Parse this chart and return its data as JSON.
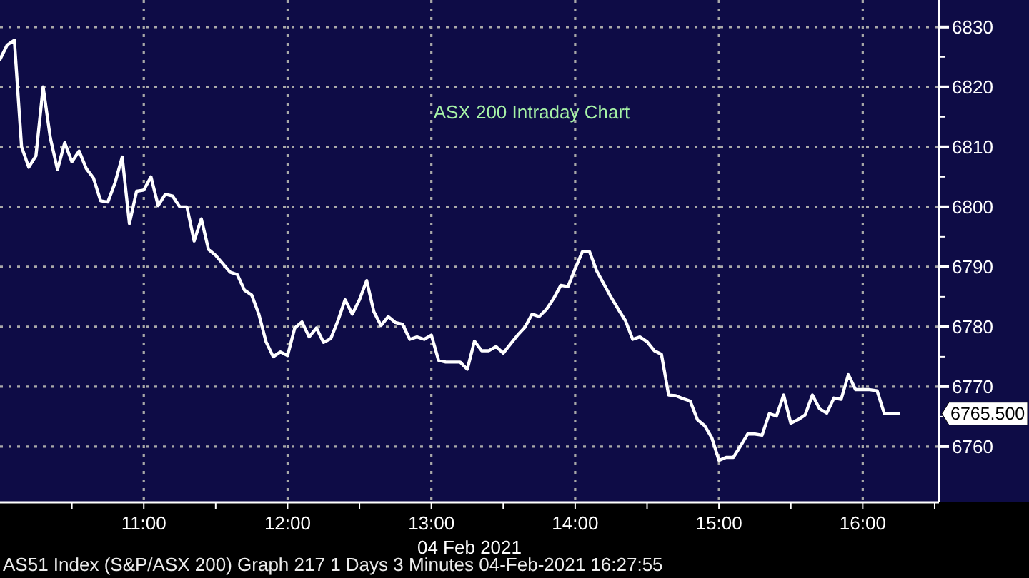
{
  "chart_data": {
    "type": "line",
    "title": "ASX 200 Intraday Chart",
    "xlabel": "04 Feb 2021",
    "annotations": [
      "AS51 Index (S&P/ASX 200) Graph 217 1 Days 3 Minutes 04-Feb-2021 16:27:55",
      "6765.500"
    ],
    "x": [
      10.0,
      10.05,
      10.1,
      10.15,
      10.2,
      10.25,
      10.3,
      10.35,
      10.4,
      10.45,
      10.5,
      10.55,
      10.6,
      10.65,
      10.7,
      10.75,
      10.8,
      10.85,
      10.9,
      10.95,
      11.0,
      11.05,
      11.1,
      11.15,
      11.2,
      11.25,
      11.3,
      11.35,
      11.4,
      11.45,
      11.5,
      11.55,
      11.6,
      11.65,
      11.7,
      11.75,
      11.8,
      11.85,
      11.9,
      11.95,
      12.0,
      12.05,
      12.1,
      12.15,
      12.2,
      12.25,
      12.3,
      12.35,
      12.4,
      12.45,
      12.5,
      12.55,
      12.6,
      12.65,
      12.7,
      12.75,
      12.8,
      12.85,
      12.9,
      12.95,
      13.0,
      13.05,
      13.1,
      13.15,
      13.2,
      13.25,
      13.3,
      13.35,
      13.4,
      13.45,
      13.5,
      13.55,
      13.6,
      13.65,
      13.7,
      13.75,
      13.8,
      13.85,
      13.9,
      13.95,
      14.0,
      14.05,
      14.1,
      14.15,
      14.2,
      14.25,
      14.3,
      14.35,
      14.4,
      14.45,
      14.5,
      14.55,
      14.6,
      14.65,
      14.7,
      14.75,
      14.8,
      14.85,
      14.9,
      14.95,
      15.0,
      15.05,
      15.1,
      15.15,
      15.2,
      15.25,
      15.3,
      15.35,
      15.4,
      15.45,
      15.5,
      15.55,
      15.6,
      15.65,
      15.7,
      15.75,
      15.8,
      15.85,
      15.9,
      15.95,
      16.0,
      16.05,
      16.1,
      16.15,
      16.2,
      16.25
    ],
    "series": [
      {
        "color": "#ffffff",
        "values": [
          6824.6,
          6827.0,
          6827.8,
          6810.0,
          6806.6,
          6808.5,
          6820.0,
          6811.5,
          6806.2,
          6810.7,
          6807.5,
          6809.3,
          6806.4,
          6804.8,
          6801.0,
          6800.8,
          6804.0,
          6808.3,
          6797.2,
          6802.6,
          6802.8,
          6805.0,
          6800.2,
          6802.1,
          6801.8,
          6800.0,
          6800.0,
          6794.3,
          6798.0,
          6792.9,
          6791.9,
          6790.5,
          6789.1,
          6788.7,
          6786.1,
          6785.3,
          6782.1,
          6777.5,
          6775.0,
          6775.8,
          6775.2,
          6779.8,
          6780.8,
          6778.3,
          6779.8,
          6777.4,
          6778.0,
          6781.0,
          6784.5,
          6782.1,
          6784.5,
          6787.7,
          6782.5,
          6780.2,
          6781.7,
          6780.7,
          6780.4,
          6777.9,
          6778.3,
          6777.9,
          6778.6,
          6774.4,
          6774.1,
          6774.1,
          6774.1,
          6772.9,
          6777.6,
          6776.0,
          6776.0,
          6776.7,
          6775.6,
          6777.1,
          6778.6,
          6779.9,
          6782.1,
          6781.7,
          6782.9,
          6784.7,
          6786.9,
          6786.7,
          6789.7,
          6792.5,
          6792.5,
          6789.3,
          6787.1,
          6784.9,
          6782.9,
          6781.0,
          6777.9,
          6778.3,
          6777.5,
          6776.0,
          6775.4,
          6768.6,
          6768.5,
          6768.0,
          6767.6,
          6764.5,
          6763.5,
          6761.5,
          6757.7,
          6758.2,
          6758.2,
          6760.1,
          6762.1,
          6762.1,
          6761.9,
          6765.5,
          6765.1,
          6768.6,
          6763.9,
          6764.5,
          6765.3,
          6768.6,
          6766.3,
          6765.6,
          6768.1,
          6767.9,
          6772.0,
          6769.5,
          6769.5,
          6769.5,
          6769.3,
          6765.5,
          6765.5,
          6765.5
        ]
      }
    ],
    "xlim": [
      10.0,
      16.53
    ],
    "ylim": [
      6750.7,
      6834.5
    ],
    "xticks": [
      {
        "value": 10.5,
        "label": null
      },
      {
        "value": 11,
        "label": "11:00"
      },
      {
        "value": 11.5,
        "label": null
      },
      {
        "value": 12,
        "label": "12:00"
      },
      {
        "value": 12.5,
        "label": null
      },
      {
        "value": 13,
        "label": "13:00"
      },
      {
        "value": 13.5,
        "label": null
      },
      {
        "value": 14,
        "label": "14:00"
      },
      {
        "value": 14.5,
        "label": null
      },
      {
        "value": 15,
        "label": "15:00"
      },
      {
        "value": 15.5,
        "label": null
      },
      {
        "value": 16,
        "label": "16:00"
      },
      {
        "value": 16.5,
        "label": null
      }
    ],
    "yticks": [
      6760,
      {
        "value": 6765,
        "label": null
      },
      6770,
      {
        "value": 6775,
        "label": null
      },
      6780,
      {
        "value": 6785,
        "label": null
      },
      6790,
      {
        "value": 6795,
        "label": null
      },
      6800,
      {
        "value": 6805,
        "label": null
      },
      6810,
      {
        "value": 6815,
        "label": null
      },
      6820,
      {
        "value": 6825,
        "label": null
      },
      6830
    ],
    "grid": true
  }
}
